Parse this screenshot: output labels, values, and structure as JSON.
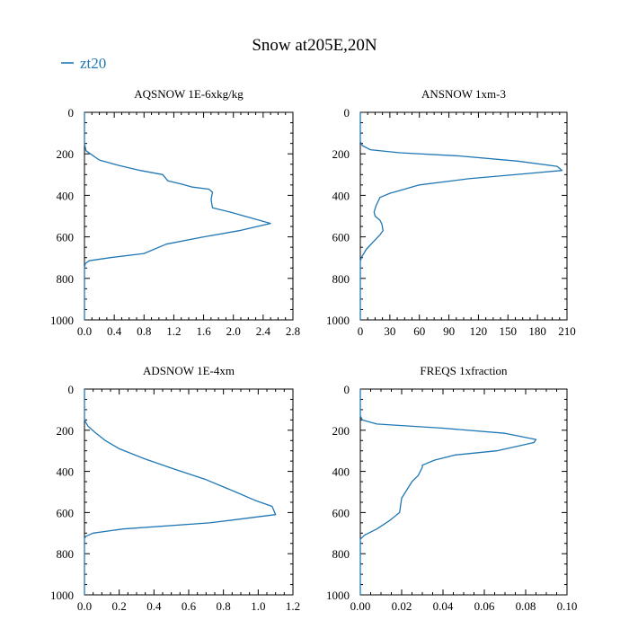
{
  "title": "Snow at205E,20N",
  "legend": {
    "label": "zt20",
    "color": "#1f77b4",
    "placement": "top-left"
  },
  "chart_data": [
    {
      "type": "line",
      "title": "AQSNOW  1E-6xkg/kg",
      "xlim": [
        0,
        2.8
      ],
      "xticks": [
        "0.0",
        "0.4",
        "0.8",
        "1.2",
        "1.6",
        "2.0",
        "2.4",
        "2.8"
      ],
      "ylim": [
        1000,
        0
      ],
      "yticks": [
        "0",
        "200",
        "400",
        "600",
        "800",
        "1000"
      ],
      "series": [
        {
          "name": "zt20",
          "x": [
            0,
            0,
            0.02,
            0.08,
            0.2,
            0.45,
            0.75,
            1.05,
            1.12,
            1.3,
            1.45,
            1.67,
            1.72,
            1.7,
            1.72,
            1.95,
            2.15,
            2.5,
            2.08,
            1.6,
            1.1,
            0.8,
            0.35,
            0.06,
            0.01,
            0,
            0
          ],
          "y": [
            0,
            150,
            185,
            200,
            230,
            255,
            280,
            300,
            330,
            345,
            360,
            370,
            385,
            420,
            460,
            480,
            500,
            535,
            570,
            600,
            635,
            680,
            700,
            715,
            730,
            750,
            1000
          ]
        }
      ]
    },
    {
      "type": "line",
      "title": "ANSNOW  1xm-3",
      "xlim": [
        0,
        210
      ],
      "xticks": [
        "0",
        "30",
        "60",
        "90",
        "120",
        "150",
        "180",
        "210"
      ],
      "ylim": [
        1000,
        0
      ],
      "yticks": [
        "0",
        "200",
        "400",
        "600",
        "800",
        "1000"
      ],
      "series": [
        {
          "name": "zt20",
          "x": [
            0,
            0,
            2,
            10,
            40,
            100,
            160,
            200,
            205,
            170,
            110,
            60,
            45,
            30,
            20,
            16,
            14,
            15,
            20,
            22,
            23,
            20,
            14,
            6,
            1,
            0,
            0
          ],
          "y": [
            0,
            140,
            160,
            180,
            195,
            210,
            235,
            260,
            280,
            295,
            320,
            350,
            370,
            390,
            410,
            450,
            480,
            500,
            520,
            540,
            570,
            590,
            620,
            660,
            700,
            720,
            1000
          ]
        }
      ]
    },
    {
      "type": "line",
      "title": "ADSNOW  1E-4xm",
      "xlim": [
        0,
        1.2
      ],
      "xticks": [
        "0.0",
        "0.2",
        "0.4",
        "0.6",
        "0.8",
        "1.0",
        "1.2"
      ],
      "ylim": [
        1000,
        0
      ],
      "yticks": [
        "0",
        "200",
        "400",
        "600",
        "800",
        "1000"
      ],
      "series": [
        {
          "name": "zt20",
          "x": [
            0,
            0,
            0.02,
            0.06,
            0.12,
            0.2,
            0.35,
            0.52,
            0.7,
            0.87,
            0.98,
            1.08,
            1.1,
            0.72,
            0.22,
            0.05,
            0.01,
            0,
            0
          ],
          "y": [
            0,
            150,
            180,
            210,
            250,
            290,
            340,
            390,
            440,
            500,
            540,
            570,
            610,
            650,
            680,
            700,
            715,
            725,
            1000
          ]
        }
      ]
    },
    {
      "type": "line",
      "title": "FREQS  1xfraction",
      "xlim": [
        0,
        0.1
      ],
      "xticks": [
        "0.00",
        "0.02",
        "0.04",
        "0.06",
        "0.08",
        "0.10"
      ],
      "ylim": [
        1000,
        0
      ],
      "yticks": [
        "0",
        "200",
        "400",
        "600",
        "800",
        "1000"
      ],
      "series": [
        {
          "name": "zt20",
          "x": [
            0,
            0,
            0.001,
            0.008,
            0.04,
            0.07,
            0.085,
            0.084,
            0.066,
            0.046,
            0.036,
            0.03,
            0.03,
            0.028,
            0.025,
            0.02,
            0.019,
            0.014,
            0.008,
            0.002,
            0,
            0
          ],
          "y": [
            0,
            130,
            150,
            170,
            190,
            215,
            245,
            260,
            300,
            320,
            345,
            370,
            380,
            420,
            450,
            530,
            600,
            640,
            680,
            710,
            730,
            1000
          ]
        }
      ]
    }
  ]
}
